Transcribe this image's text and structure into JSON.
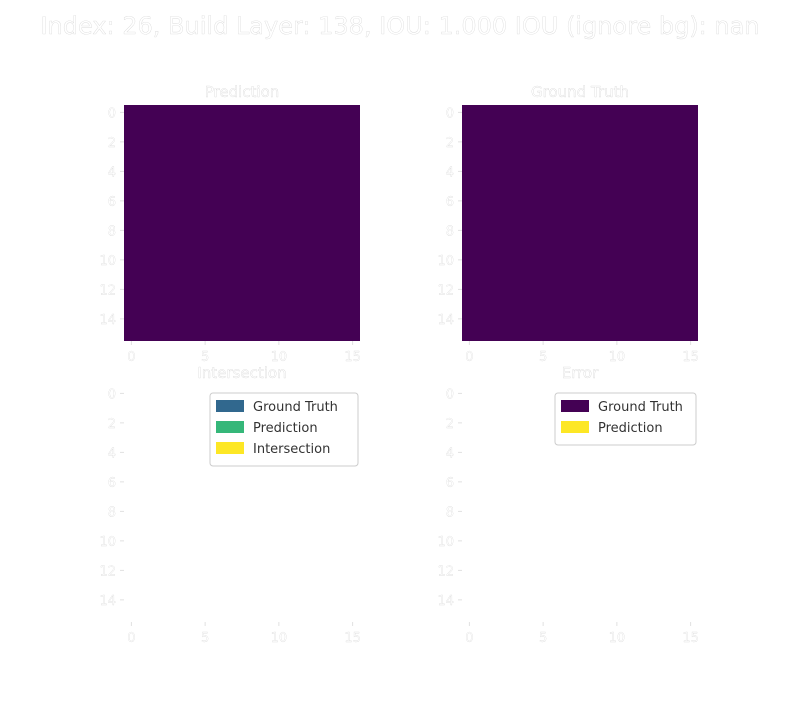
{
  "figure": {
    "title": "Index: 26, Build Layer: 138, IOU: 1.000 IOU (ignore bg): nan",
    "text_color": "#ffffff"
  },
  "chart_data": [
    {
      "type": "heatmap",
      "title": "Prediction",
      "xlabel": "",
      "ylabel": "",
      "grid_shape": [
        16,
        16
      ],
      "fill_value": 0,
      "fill_color": "#440154",
      "xlim": [
        -0.5,
        15.5
      ],
      "ylim": [
        15.5,
        -0.5
      ],
      "x_ticks": [
        0,
        5,
        10,
        15
      ],
      "y_ticks": [
        0,
        2,
        4,
        6,
        8,
        10,
        12,
        14
      ],
      "grid": false,
      "legend": null
    },
    {
      "type": "heatmap",
      "title": "Ground Truth",
      "xlabel": "",
      "ylabel": "",
      "grid_shape": [
        16,
        16
      ],
      "fill_value": 0,
      "fill_color": "#440154",
      "xlim": [
        -0.5,
        15.5
      ],
      "ylim": [
        15.5,
        -0.5
      ],
      "x_ticks": [
        0,
        5,
        10,
        15
      ],
      "y_ticks": [
        0,
        2,
        4,
        6,
        8,
        10,
        12,
        14
      ],
      "grid": false,
      "legend": null
    },
    {
      "type": "heatmap",
      "title": "Intersection",
      "xlabel": "",
      "ylabel": "",
      "grid_shape": [
        16,
        16
      ],
      "fill_value": null,
      "fill_color": null,
      "xlim": [
        -0.5,
        15.5
      ],
      "ylim": [
        15.5,
        -0.5
      ],
      "x_ticks": [
        0,
        5,
        10,
        15
      ],
      "y_ticks": [
        0,
        2,
        4,
        6,
        8,
        10,
        12,
        14
      ],
      "grid": false,
      "legend": {
        "placement": "top-right",
        "entries": [
          {
            "label": "Ground Truth",
            "color": "#31688e"
          },
          {
            "label": "Prediction",
            "color": "#35b779"
          },
          {
            "label": "Intersection",
            "color": "#fde725"
          }
        ]
      }
    },
    {
      "type": "heatmap",
      "title": "Error",
      "xlabel": "",
      "ylabel": "",
      "grid_shape": [
        16,
        16
      ],
      "fill_value": null,
      "fill_color": null,
      "xlim": [
        -0.5,
        15.5
      ],
      "ylim": [
        15.5,
        -0.5
      ],
      "x_ticks": [
        0,
        5,
        10,
        15
      ],
      "y_ticks": [
        0,
        2,
        4,
        6,
        8,
        10,
        12,
        14
      ],
      "grid": false,
      "legend": {
        "placement": "top-right",
        "entries": [
          {
            "label": "Ground Truth",
            "color": "#440154"
          },
          {
            "label": "Prediction",
            "color": "#fde725"
          }
        ]
      }
    }
  ]
}
